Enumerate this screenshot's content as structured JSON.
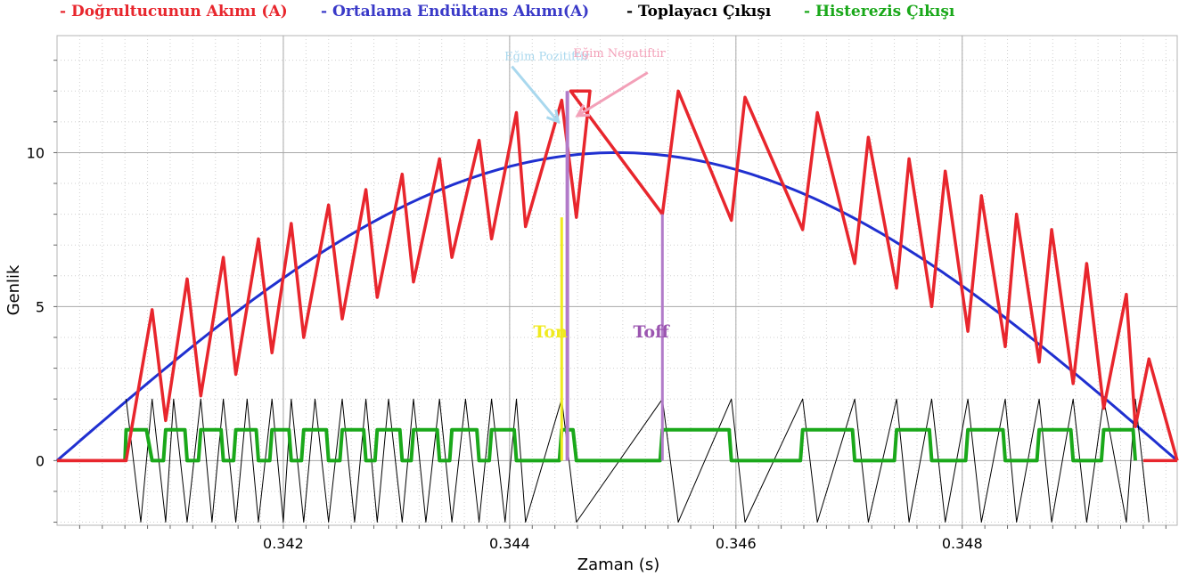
{
  "legend": [
    {
      "label": "- Doğrultucunun Akımı (A)",
      "color": "#e8262d"
    },
    {
      "label": "- Ortalama Endüktans Akımı(A)",
      "color": "#3a3ac8"
    },
    {
      "label": "- Toplayacı Çıkışı",
      "color": "#000000"
    },
    {
      "label": "- Histerezis Çıkışı",
      "color": "#1aa81a"
    }
  ],
  "chart_data": {
    "type": "line",
    "xlabel": "Zaman (s)",
    "ylabel": "Genlik",
    "xlim": [
      0.34,
      0.3499
    ],
    "ylim": [
      -2.1,
      13.8
    ],
    "x_ticks": [
      0.342,
      0.344,
      0.346,
      0.348
    ],
    "x_tick_labels": [
      "0.342",
      "0.344",
      "0.346",
      "0.348"
    ],
    "y_ticks": [
      0,
      5,
      10
    ],
    "y_tick_labels": [
      "0",
      "5",
      "10"
    ],
    "grid": true,
    "series": [
      {
        "name": "Ortalama Endüktans Akımı(A)",
        "color": "#2030d0",
        "x": [
          0.34,
          0.3405,
          0.341,
          0.3415,
          0.342,
          0.3425,
          0.343,
          0.3435,
          0.344,
          0.3445,
          0.345,
          0.3455,
          0.346,
          0.3465,
          0.347,
          0.3475,
          0.348,
          0.3485,
          0.349,
          0.3495,
          0.3499
        ],
        "y": [
          0.0,
          1.6,
          3.1,
          4.5,
          5.9,
          7.1,
          8.1,
          9.0,
          9.6,
          9.9,
          10.0,
          9.9,
          9.6,
          9.0,
          8.1,
          7.1,
          5.9,
          4.5,
          3.1,
          1.6,
          0.0
        ]
      },
      {
        "name": "Doğrultucunun Akımı (A)",
        "color": "#e8262d",
        "x": [
          0.34,
          0.34061,
          0.34084,
          0.34096,
          0.34115,
          0.34127,
          0.34147,
          0.34158,
          0.34178,
          0.3419,
          0.34207,
          0.34218,
          0.3424,
          0.34252,
          0.34273,
          0.34283,
          0.34305,
          0.34315,
          0.34338,
          0.34349,
          0.34373,
          0.34384,
          0.34406,
          0.34414,
          0.34446,
          0.34459,
          0.34471,
          0.34454,
          0.34535,
          0.34549,
          0.34596,
          0.34608,
          0.34659,
          0.34672,
          0.34705,
          0.34717,
          0.34742,
          0.34753,
          0.34773,
          0.34785,
          0.34805,
          0.34817,
          0.34838,
          0.34848,
          0.34868,
          0.34879,
          0.34898,
          0.3491,
          0.34925,
          0.34945,
          0.34953,
          0.34965,
          0.3499
        ],
        "y": [
          0.0,
          0.0,
          4.9,
          1.3,
          5.9,
          2.1,
          6.6,
          2.8,
          7.2,
          3.5,
          7.7,
          4.0,
          8.3,
          4.6,
          8.8,
          5.3,
          9.3,
          5.8,
          9.8,
          6.6,
          10.4,
          7.2,
          11.3,
          7.6,
          11.7,
          7.9,
          12.0,
          12.0,
          8.0,
          12.0,
          7.8,
          11.8,
          7.5,
          11.3,
          6.4,
          10.5,
          5.6,
          9.8,
          5.0,
          9.4,
          4.2,
          8.6,
          3.7,
          8.0,
          3.2,
          7.5,
          2.5,
          6.4,
          1.7,
          5.4,
          1.1,
          3.3,
          0.0
        ]
      },
      {
        "name": "Toplayacı Çıkışı",
        "color": "#000000",
        "x": [
          0.34061,
          0.34074,
          0.34084,
          0.34096,
          0.34103,
          0.34115,
          0.34127,
          0.34137,
          0.34147,
          0.34158,
          0.34168,
          0.34178,
          0.3419,
          0.342,
          0.34207,
          0.34218,
          0.34228,
          0.3424,
          0.34252,
          0.34263,
          0.34273,
          0.34283,
          0.34293,
          0.34305,
          0.34315,
          0.34326,
          0.34338,
          0.34349,
          0.34361,
          0.34373,
          0.34384,
          0.34396,
          0.34406,
          0.34414,
          0.34446,
          0.34459,
          0.34535,
          0.34549,
          0.34596,
          0.34608,
          0.34659,
          0.34672,
          0.34705,
          0.34717,
          0.34742,
          0.34753,
          0.34773,
          0.34785,
          0.34805,
          0.34817,
          0.34838,
          0.34848,
          0.34868,
          0.34879,
          0.34898,
          0.3491,
          0.34925,
          0.34945,
          0.34953,
          0.34965
        ],
        "y": [
          2.0,
          -2.0,
          2.0,
          -2.0,
          2.0,
          -2.0,
          2.0,
          -2.0,
          2.0,
          -2.0,
          2.0,
          -2.0,
          2.0,
          -2.0,
          2.0,
          -2.0,
          2.0,
          -2.0,
          2.0,
          -2.0,
          2.0,
          -2.0,
          2.0,
          -2.0,
          2.0,
          -2.0,
          2.0,
          -2.0,
          2.0,
          -2.0,
          2.0,
          -2.0,
          2.0,
          -2.0,
          2.0,
          -2.0,
          2.0,
          -2.0,
          2.0,
          -2.0,
          2.0,
          -2.0,
          2.0,
          -2.0,
          2.0,
          -2.0,
          2.0,
          -2.0,
          2.0,
          -2.0,
          2.0,
          -2.0,
          2.0,
          -2.0,
          2.0,
          -2.0,
          2.0,
          -2.0,
          2.0,
          -2.0
        ]
      },
      {
        "name": "Histerezis Çıkışı",
        "color": "#1aa81a",
        "x": [
          0.3406,
          0.34061,
          0.34079,
          0.34084,
          0.34094,
          0.34096,
          0.34113,
          0.34115,
          0.34125,
          0.34127,
          0.34145,
          0.34147,
          0.34156,
          0.34158,
          0.34176,
          0.34178,
          0.34188,
          0.3419,
          0.34205,
          0.34207,
          0.34216,
          0.34218,
          0.34238,
          0.3424,
          0.3425,
          0.34252,
          0.34271,
          0.34273,
          0.34281,
          0.34283,
          0.34303,
          0.34305,
          0.34313,
          0.34315,
          0.34336,
          0.34338,
          0.34347,
          0.34349,
          0.34371,
          0.34373,
          0.34382,
          0.34384,
          0.34404,
          0.34406,
          0.34444,
          0.34446,
          0.34456,
          0.34459,
          0.34533,
          0.34535,
          0.34594,
          0.34596,
          0.34657,
          0.34659,
          0.34703,
          0.34705,
          0.3474,
          0.34742,
          0.34771,
          0.34773,
          0.34803,
          0.34805,
          0.34836,
          0.34838,
          0.34866,
          0.34868,
          0.34896,
          0.34898,
          0.34923,
          0.34925,
          0.34951,
          0.34953
        ],
        "y": [
          0,
          1,
          1,
          0,
          0,
          1,
          1,
          0,
          0,
          1,
          1,
          0,
          0,
          1,
          1,
          0,
          0,
          1,
          1,
          0,
          0,
          1,
          1,
          0,
          0,
          1,
          1,
          0,
          0,
          1,
          1,
          0,
          0,
          1,
          1,
          0,
          0,
          1,
          1,
          0,
          0,
          1,
          1,
          0,
          0,
          1,
          1,
          0,
          0,
          1,
          1,
          0,
          0,
          1,
          1,
          0,
          0,
          1,
          1,
          0,
          0,
          1,
          1,
          0,
          0,
          1,
          1,
          0,
          0,
          1,
          1,
          0
        ]
      }
    ]
  },
  "annotations": {
    "slope_pos": {
      "text": "Eğim Pozitiftir",
      "color": "#a9d8ee",
      "x": 0.34433,
      "y": 13.0
    },
    "slope_neg": {
      "text": "Eğim Negatiftir",
      "color": "#f3a0b8",
      "x": 0.34497,
      "y": 13.1
    },
    "ton": {
      "text": "Ton",
      "color": "#f0ea1e",
      "x": 0.34436,
      "y": 4.0
    },
    "toff": {
      "text": "Toff",
      "color": "#9b55b0",
      "x": 0.34525,
      "y": 4.0
    },
    "ton_line_color": "#f0ea1e",
    "toff_line_color": "#b27bc9"
  }
}
